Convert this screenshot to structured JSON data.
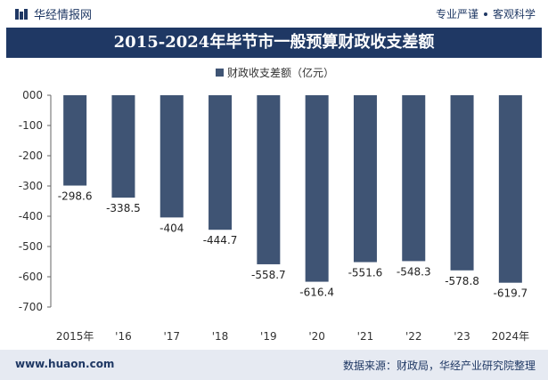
{
  "header": {
    "brand": "华经情报网",
    "slogan_left": "专业严谨",
    "slogan_right": "客观科学"
  },
  "title": "2015-2024年毕节市一般预算财政收支差额",
  "colors": {
    "bar": "#3f5474",
    "title_bg": "#1f3864",
    "footer_bg": "#e6eaf2"
  },
  "chart_data": {
    "type": "bar",
    "categories": [
      "2015年",
      "'16",
      "'17",
      "'18",
      "'19",
      "'20",
      "'21",
      "'22",
      "'23",
      "2024年"
    ],
    "series": [
      {
        "name": "财政收支差额（亿元）",
        "values": [
          -298.6,
          -338.5,
          -404,
          -444.7,
          -558.7,
          -616.4,
          -551.6,
          -548.3,
          -578.8,
          -619.7
        ]
      }
    ],
    "data_labels": [
      "-298.6",
      "-338.5",
      "-404",
      "-444.7",
      "-558.7",
      "-616.4",
      "-551.6",
      "-548.3",
      "-578.8",
      "-619.7"
    ],
    "yticks": [
      "000",
      "-100",
      "-200",
      "-300",
      "-400",
      "-500",
      "-600",
      "-700"
    ],
    "ylim": [
      -700,
      0
    ],
    "grid": false,
    "legend": "top-center"
  },
  "footer": {
    "site": "www.huaon.com",
    "source": "数据来源：财政局，华经产业研究院整理"
  }
}
